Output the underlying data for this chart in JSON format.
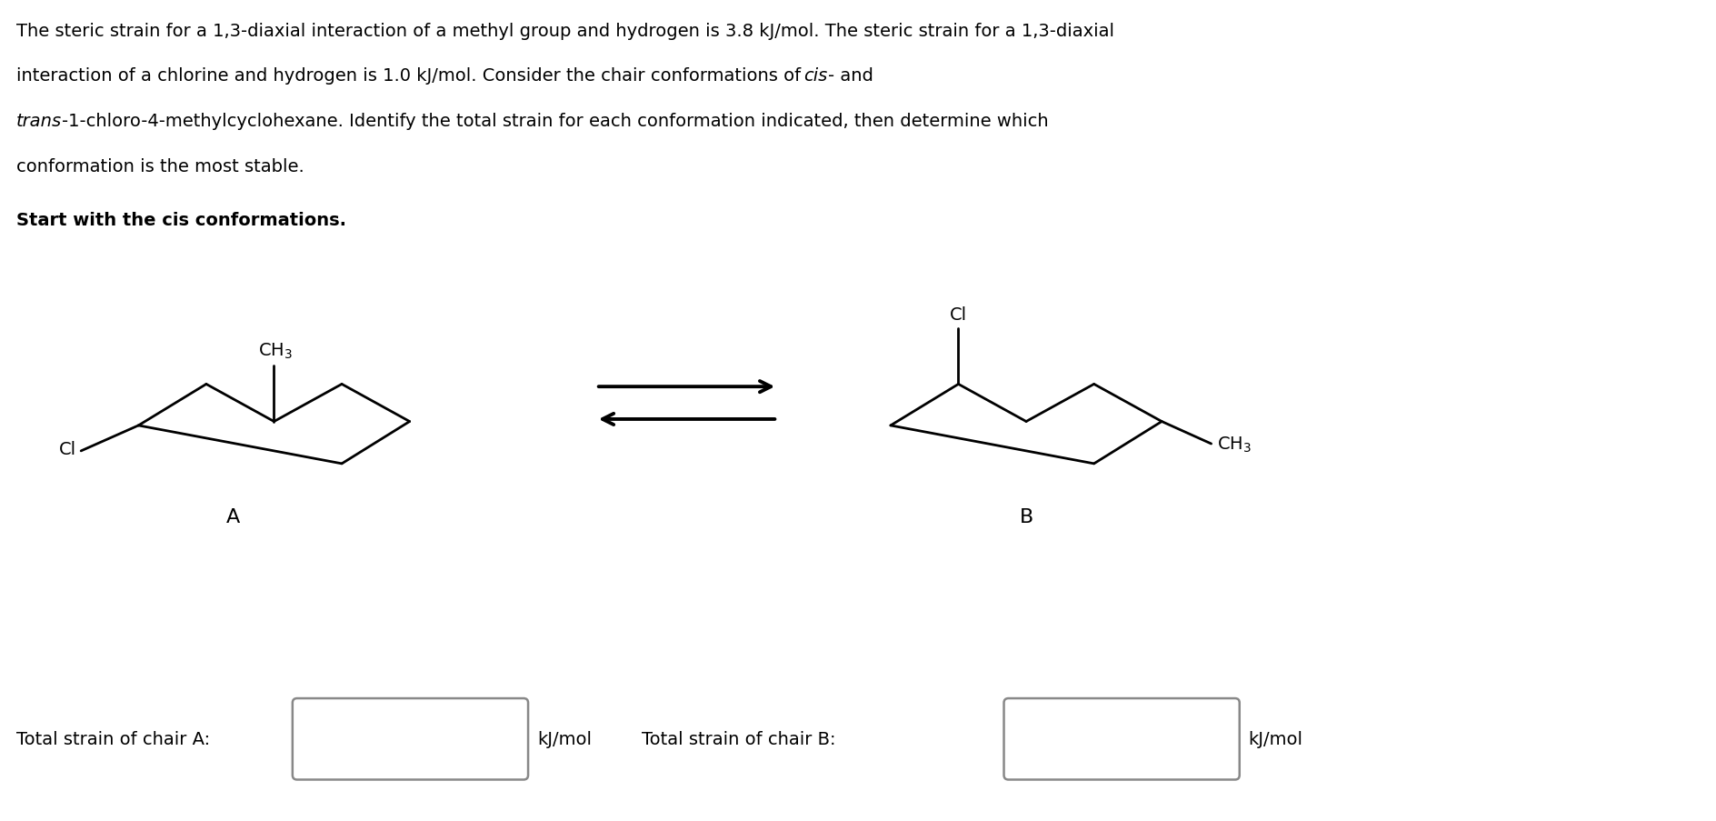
{
  "background_color": "#ffffff",
  "fig_width": 18.88,
  "fig_height": 9.04,
  "line1": "The steric strain for a 1,3-diaxial interaction of a methyl group and hydrogen is 3.8 kJ/mol. The steric strain for a 1,3-diaxial",
  "line2_pre": "interaction of a chlorine and hydrogen is 1.0 kJ/mol. Consider the chair conformations of ",
  "line2_italic": "cis",
  "line2_post": "- and",
  "line3_italic": "trans",
  "line3_post": "-1-chloro-4-methylcyclohexane. Identify the total strain for each conformation indicated, then determine which",
  "line4": "conformation is the most stable.",
  "line5": "Start with the cis conformations.",
  "label_A": "A",
  "label_B": "B",
  "total_strain_A_label": "Total strain of chair A:",
  "total_strain_B_label": "Total strain of chair B:",
  "kJ_mol": "kJ/mol",
  "Cl_label": "Cl",
  "CH3_label": "CH$_3$",
  "fontsize": 14.0,
  "lw": 2.0
}
